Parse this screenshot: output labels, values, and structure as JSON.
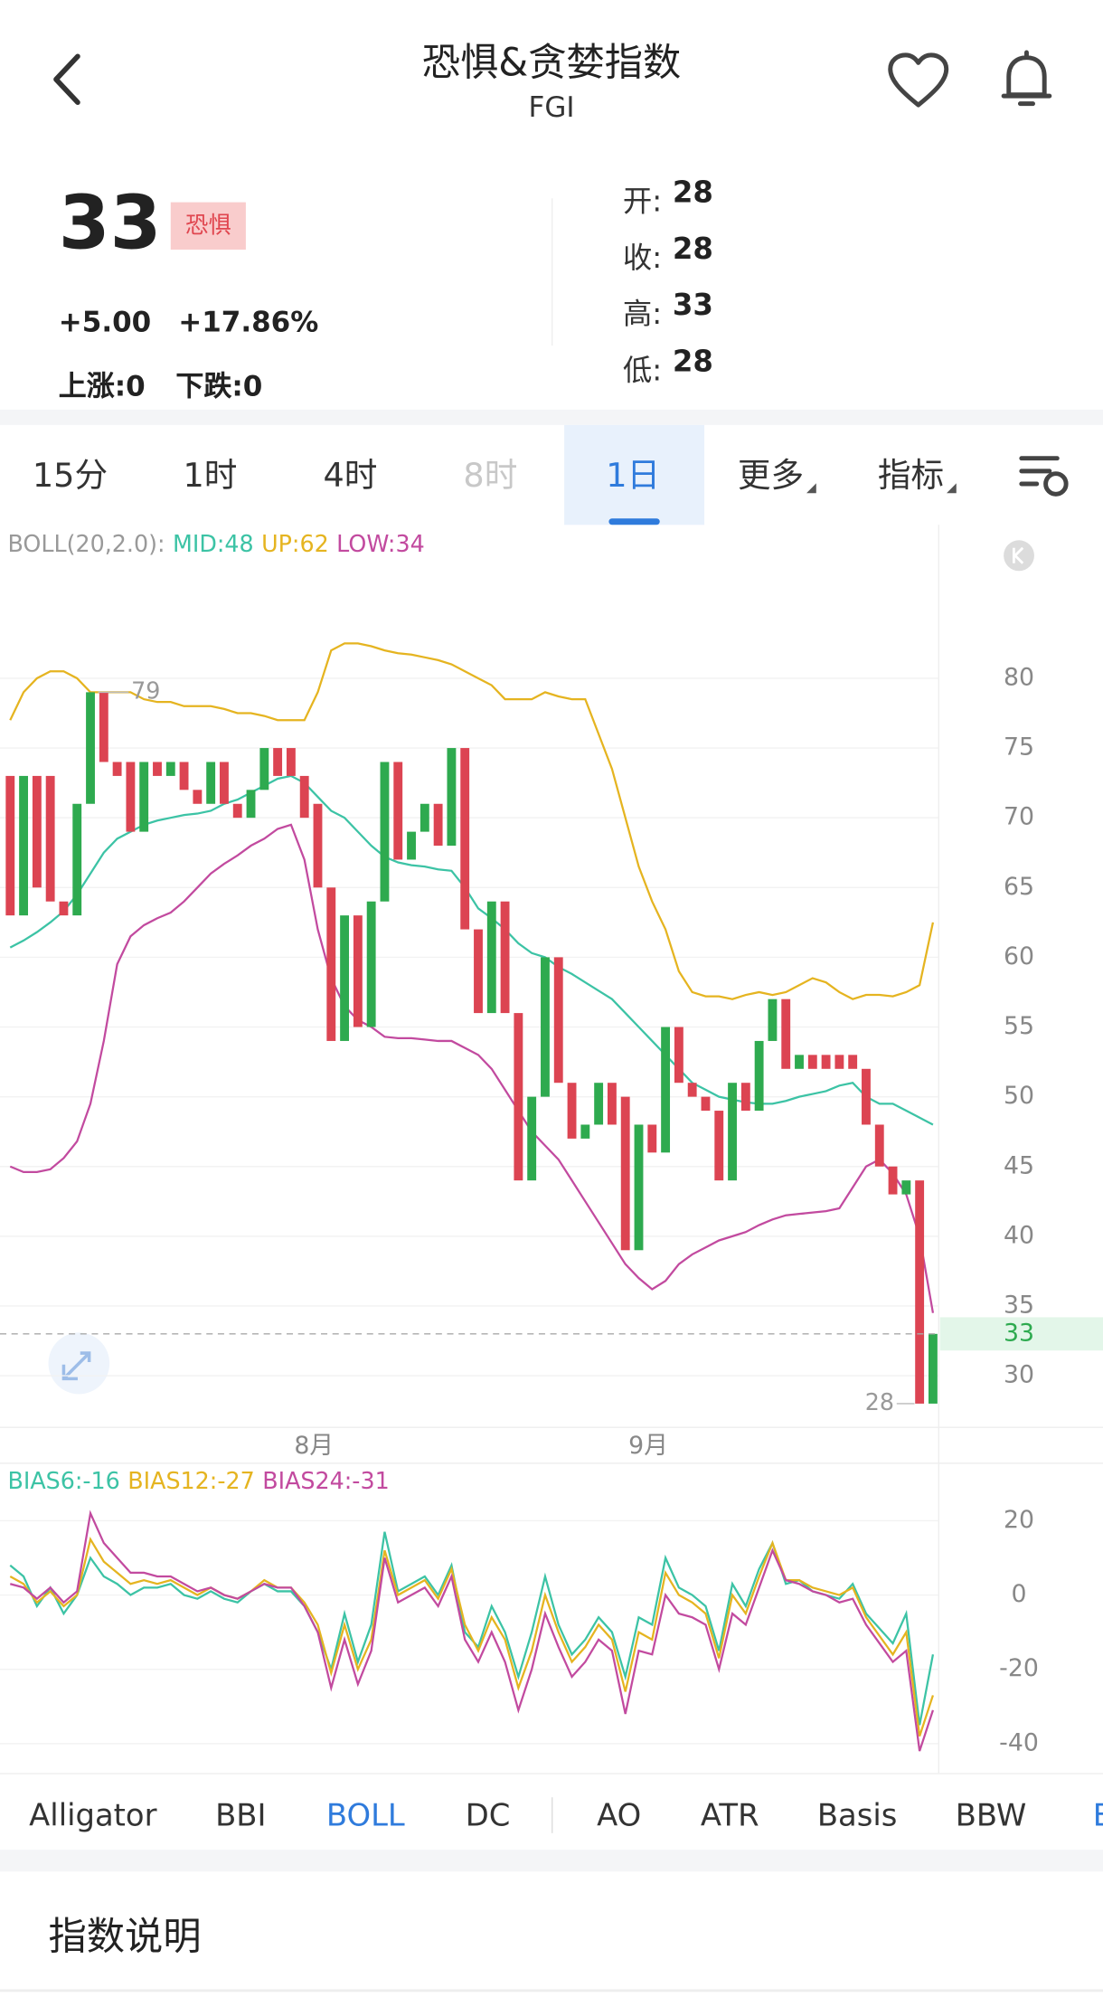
{
  "header": {
    "title": "恐惧&贪婪指数",
    "subtitle": "FGI"
  },
  "quote": {
    "price": "33",
    "tag": "恐惧",
    "change": "+5.00",
    "change_pct": "+17.86%",
    "up": "上涨:0",
    "down": "下跌:0",
    "ohlc": [
      {
        "label": "开:",
        "value": 28
      },
      {
        "label": "收:",
        "value": 28
      },
      {
        "label": "高:",
        "value": 33
      },
      {
        "label": "低:",
        "value": 28
      }
    ]
  },
  "tabs": [
    "15分",
    "1时",
    "4时",
    "8时",
    "1日",
    "更多",
    "指标"
  ],
  "indicator_tabs": [
    "Alligator",
    "BBI",
    "BOLL",
    "DC",
    "AO",
    "ATR",
    "Basis",
    "BBW",
    "B"
  ],
  "section": {
    "title": "指数说明"
  },
  "chart_data": [
    {
      "type": "candlestick",
      "indicator": "BOLL(20,2.0):",
      "categories": [
        null,
        null,
        null,
        null,
        null,
        null,
        null,
        null,
        null,
        null,
        null,
        null,
        null,
        null,
        null,
        null,
        null,
        null,
        null,
        null,
        null,
        null,
        null,
        "8月",
        null,
        null,
        null,
        null,
        null,
        null,
        null,
        null,
        null,
        null,
        null,
        null,
        null,
        null,
        null,
        null,
        null,
        null,
        null,
        null,
        null,
        null,
        null,
        null,
        "9月",
        null,
        null,
        null,
        null,
        null,
        null,
        null,
        null,
        null,
        null,
        null,
        null,
        null,
        null,
        null,
        null,
        null,
        null,
        null,
        null,
        null
      ],
      "open": [
        73,
        63,
        73,
        73,
        64,
        63,
        71,
        79,
        74,
        74,
        69,
        74,
        73,
        74,
        72,
        71,
        74,
        71,
        70,
        72,
        75,
        75,
        73,
        71,
        65,
        54,
        63,
        55,
        64,
        74,
        67,
        69,
        71,
        68,
        75,
        62,
        56,
        64,
        56,
        44,
        50,
        60,
        51,
        47,
        48,
        51,
        50,
        39,
        48,
        46,
        55,
        51,
        50,
        49,
        44,
        51,
        49,
        54,
        57,
        52,
        53,
        53,
        53,
        53,
        52,
        48,
        45,
        43,
        44,
        28
      ],
      "close": [
        63,
        73,
        65,
        64,
        63,
        71,
        79,
        74,
        73,
        69,
        74,
        73,
        74,
        72,
        71,
        74,
        71,
        70,
        72,
        75,
        73,
        73,
        70,
        65,
        54,
        63,
        55,
        64,
        74,
        67,
        69,
        71,
        68,
        75,
        62,
        56,
        64,
        56,
        44,
        50,
        60,
        51,
        47,
        48,
        51,
        48,
        39,
        48,
        46,
        55,
        51,
        50,
        49,
        44,
        51,
        49,
        54,
        57,
        52,
        53,
        52,
        52,
        52,
        52,
        48,
        45,
        43,
        44,
        28,
        33
      ],
      "up_color": "#2eaa4f",
      "down_color": "#dc4452",
      "series": [
        {
          "name": "MID:48",
          "color": "#3cc3a5",
          "values": [
            60.7,
            61.2,
            61.8,
            62.5,
            63.3,
            64.5,
            66,
            67.5,
            68.5,
            69,
            69.5,
            69.8,
            70,
            70.2,
            70.3,
            70.5,
            71,
            71.3,
            71.8,
            72.3,
            72.8,
            73,
            72.5,
            71.5,
            70.5,
            70,
            69,
            68,
            67.2,
            66.8,
            66.6,
            66.5,
            66.3,
            66.2,
            65,
            63.5,
            62.8,
            62,
            61,
            60.3,
            60,
            59.3,
            58.8,
            58.2,
            57.6,
            57,
            56,
            55,
            54,
            53,
            52,
            51,
            50.5,
            50,
            49.8,
            49.6,
            49.5,
            49.5,
            49.7,
            50,
            50.2,
            50.4,
            50.8,
            51,
            50,
            49.5,
            49.5,
            49,
            48.5,
            48
          ]
        },
        {
          "name": "UP:62",
          "color": "#e5b420",
          "values": [
            77,
            79,
            80,
            80.5,
            80.5,
            80,
            79,
            79,
            79,
            79,
            78.5,
            78.3,
            78.3,
            78,
            78,
            78,
            77.8,
            77.5,
            77.5,
            77.3,
            77,
            77,
            77,
            79,
            82,
            82.5,
            82.5,
            82.3,
            82,
            81.8,
            81.7,
            81.5,
            81.3,
            81,
            80.5,
            80,
            79.5,
            78.5,
            78.5,
            78.5,
            79,
            78.7,
            78.5,
            78.5,
            76,
            73.5,
            70,
            66.5,
            64,
            62,
            59,
            57.5,
            57.2,
            57.2,
            57,
            57.3,
            57.5,
            57.3,
            57.5,
            58,
            58.5,
            58.2,
            57.5,
            57,
            57.3,
            57.3,
            57.2,
            57.5,
            58,
            62.5
          ]
        },
        {
          "name": "LOW:34",
          "color": "#c24a9f",
          "values": [
            45,
            44.6,
            44.6,
            44.8,
            45.6,
            46.8,
            49.5,
            54,
            59.5,
            61.5,
            62.3,
            62.8,
            63.2,
            64,
            65,
            66,
            66.7,
            67.3,
            68,
            68.5,
            69.2,
            69.5,
            67,
            62,
            58.5,
            56.5,
            55.5,
            55,
            54.3,
            54.2,
            54.2,
            54.1,
            54,
            54,
            53.5,
            53,
            52,
            50.5,
            49,
            47.5,
            46.5,
            45.5,
            44,
            42.5,
            41,
            39.5,
            38,
            37,
            36.2,
            36.8,
            38,
            38.7,
            39.2,
            39.7,
            40,
            40.3,
            40.8,
            41.2,
            41.5,
            41.6,
            41.7,
            41.8,
            42,
            43.5,
            45,
            45.5,
            44.5,
            43,
            40,
            34.5
          ]
        }
      ],
      "annotations": {
        "high": 79,
        "low": 28,
        "last": 33
      },
      "ylim": [
        26.3,
        91
      ],
      "yticks": [
        30,
        35,
        40,
        45,
        50,
        55,
        60,
        65,
        70,
        75,
        80
      ],
      "grid": true
    },
    {
      "type": "line",
      "ylim": [
        -47.9,
        34.8
      ],
      "yticks": [
        20,
        0,
        -20,
        -40
      ],
      "grid": true,
      "series": [
        {
          "name": "BIAS6:-16",
          "color": "#3cc3a5",
          "values": [
            8,
            5,
            -3,
            2,
            -5,
            0,
            10,
            5,
            3,
            0,
            2,
            2,
            3,
            0,
            -1,
            1,
            -1,
            -2,
            1,
            3,
            1,
            1,
            -3,
            -10,
            -20,
            -5,
            -18,
            -8,
            17,
            1,
            3,
            5,
            0,
            8,
            -10,
            -14,
            -3,
            -10,
            -22,
            -10,
            5,
            -8,
            -16,
            -12,
            -6,
            -10,
            -22,
            -6,
            -8,
            10,
            2,
            0,
            -3,
            -15,
            3,
            -3,
            7,
            14,
            3,
            4,
            1,
            0,
            -1,
            3,
            -5,
            -9,
            -13,
            -5,
            -35,
            -16
          ]
        },
        {
          "name": "BIAS12:-27",
          "color": "#e5b420",
          "values": [
            5,
            3,
            -2,
            1,
            -3,
            0,
            15,
            9,
            6,
            3,
            4,
            3,
            4,
            2,
            0,
            2,
            0,
            -1,
            1,
            4,
            2,
            2,
            -2,
            -8,
            -21,
            -8,
            -20,
            -12,
            12,
            0,
            2,
            4,
            -1,
            7,
            -8,
            -15,
            -6,
            -12,
            -25,
            -15,
            0,
            -10,
            -18,
            -14,
            -8,
            -12,
            -26,
            -10,
            -12,
            6,
            0,
            -2,
            -5,
            -17,
            0,
            -5,
            5,
            14,
            4,
            4,
            2,
            1,
            0,
            2,
            -6,
            -11,
            -16,
            -10,
            -38,
            -27
          ]
        },
        {
          "name": "BIAS24:-31",
          "color": "#c24a9f",
          "values": [
            3,
            2,
            -1,
            2,
            -2,
            1,
            22,
            14,
            10,
            6,
            6,
            5,
            5,
            3,
            1,
            2,
            0,
            -1,
            1,
            3,
            2,
            2,
            -3,
            -10,
            -25,
            -12,
            -24,
            -15,
            10,
            -2,
            0,
            2,
            -3,
            5,
            -12,
            -18,
            -10,
            -18,
            -31,
            -20,
            -5,
            -14,
            -22,
            -18,
            -12,
            -15,
            -32,
            -15,
            -16,
            0,
            -5,
            -6,
            -8,
            -20,
            -5,
            -8,
            2,
            12,
            4,
            3,
            1,
            0,
            -2,
            -1,
            -8,
            -13,
            -18,
            -15,
            -42,
            -31
          ]
        }
      ]
    }
  ]
}
